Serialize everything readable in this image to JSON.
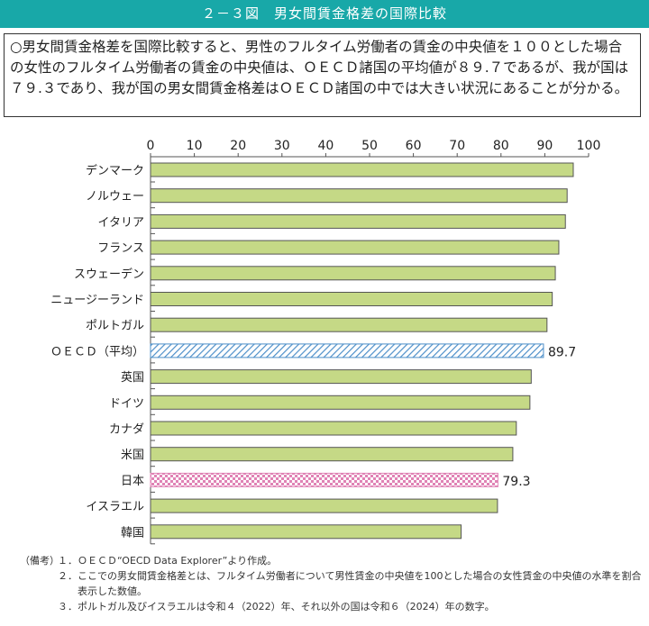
{
  "header": {
    "title": "２－３図　男女間賃金格差の国際比較"
  },
  "summary": {
    "text": "○男女間賃金格差を国際比較すると、男性のフルタイム労働者の賃金の中央値を１００とした場合の女性のフルタイム労働者の賃金の中央値は、ＯＥＣＤ諸国の平均値が８９.７であるが、我が国は７９.３であり、我が国の男女間賃金格差はＯＥＣＤ諸国の中では大きい状況にあることが分かる。"
  },
  "chart_data": {
    "type": "bar",
    "orientation": "horizontal",
    "categories": [
      "デンマーク",
      "ノルウェー",
      "イタリア",
      "フランス",
      "スウェーデン",
      "ニュージーランド",
      "ポルトガル",
      "ＯＥＣＤ（平均）",
      "英国",
      "ドイツ",
      "カナダ",
      "米国",
      "日本",
      "イスラエル",
      "韓国"
    ],
    "values": [
      96.5,
      95.1,
      94.7,
      93.2,
      92.4,
      91.7,
      90.5,
      89.7,
      86.9,
      86.6,
      83.5,
      82.7,
      79.3,
      79.2,
      70.9
    ],
    "data_labels": {
      "ＯＥＣＤ（平均）": "89.7",
      "日本": "79.3"
    },
    "xlim": [
      0,
      100
    ],
    "xticks": [
      0,
      10,
      20,
      30,
      40,
      50,
      60,
      70,
      80,
      90,
      100
    ],
    "axis_position": "top",
    "grid": false,
    "colors": {
      "default": "#c5d986",
      "default_border": "#555555",
      "oecd": "#4d8fc9",
      "japan": "#e083b5"
    }
  },
  "notes": {
    "head": "（備考）",
    "items": [
      {
        "num": "１．",
        "text": "ＯＥＣＤ“OECD Data Explorer”より作成。"
      },
      {
        "num": "２．",
        "text": "ここでの男女間賃金格差とは、フルタイム労働者について男性賃金の中央値を100とした場合の女性賃金の中央値の水準を割合表示した数値。"
      },
      {
        "num": "３．",
        "text": "ポルトガル及びイスラエルは令和４（2022）年、それ以外の国は令和６（2024）年の数字。"
      }
    ]
  }
}
